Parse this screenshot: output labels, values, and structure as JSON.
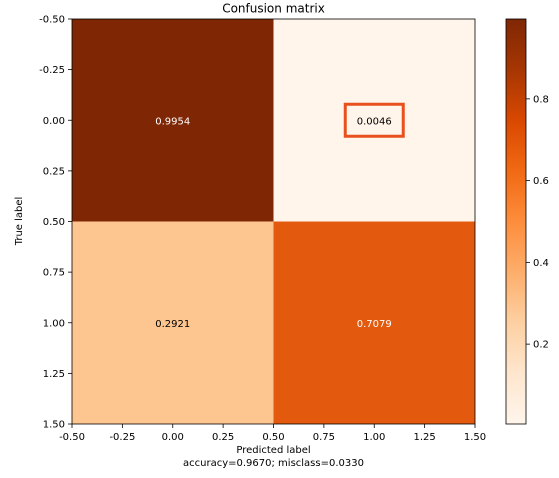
{
  "chart_data": {
    "type": "heatmap",
    "title": "Confusion matrix",
    "xlabel": "Predicted label",
    "ylabel": "True label",
    "footer": "accuracy=0.9670; misclass=0.0330",
    "colormap": "Oranges",
    "matrix": [
      [
        0.9954,
        0.0046
      ],
      [
        0.2921,
        0.7079
      ]
    ],
    "cell_labels": [
      [
        "0.9954",
        "0.0046"
      ],
      [
        "0.2921",
        "0.7079"
      ]
    ],
    "cell_colors": [
      [
        "#7f2704",
        "#fff5eb"
      ],
      [
        "#fdc590",
        "#e35a0e"
      ]
    ],
    "cell_text_colors": [
      [
        "#ffffff",
        "#000000"
      ],
      [
        "#000000",
        "#ffffff"
      ]
    ],
    "highlighted_cell": [
      0,
      1
    ],
    "highlight_color": "#e8501d",
    "xlim": [
      -0.5,
      1.5
    ],
    "ylim": [
      1.5,
      -0.5
    ],
    "xticks": [
      "-0.50",
      "-0.25",
      "0.00",
      "0.25",
      "0.50",
      "0.75",
      "1.00",
      "1.25",
      "1.50"
    ],
    "yticks": [
      "-0.50",
      "-0.25",
      "0.00",
      "0.25",
      "0.50",
      "0.75",
      "1.00",
      "1.25",
      "1.50"
    ],
    "colorbar": {
      "range": [
        0.0046,
        0.9954
      ],
      "ticks": [
        "0.2",
        "0.4",
        "0.6",
        "0.8"
      ],
      "tick_values": [
        0.2,
        0.4,
        0.6,
        0.8
      ]
    }
  }
}
